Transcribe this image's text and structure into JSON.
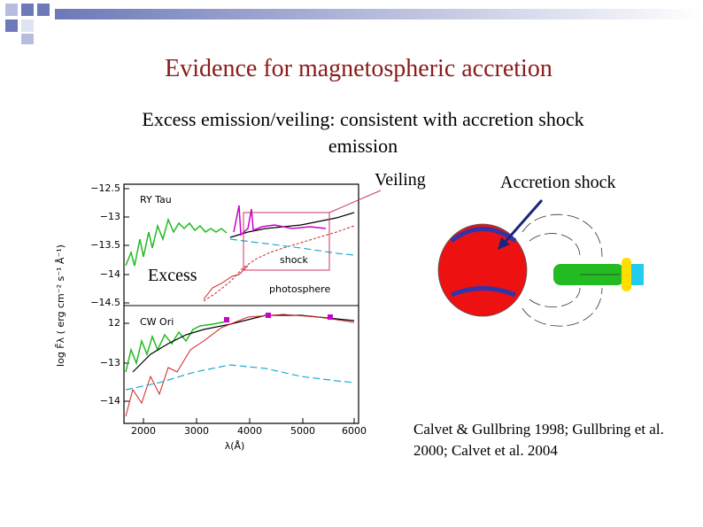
{
  "slide": {
    "title": "Evidence for magnetospheric accretion",
    "subtitle": "Excess emission/veiling: consistent with accretion shock emission"
  },
  "figure": {
    "annotations": {
      "veiling": "Veiling",
      "accretion_shock": "Accretion shock",
      "excess": "Excess"
    },
    "plot": {
      "panels": [
        {
          "label": "RY Tau",
          "yticks": [
            "−12.5",
            "−13",
            "−13.5",
            "−14",
            "−14.5"
          ]
        },
        {
          "label": "CW Ori",
          "yticks": [
            "12",
            "−13",
            "−14"
          ]
        }
      ],
      "xticks": [
        "2000",
        "3000",
        "4000",
        "5000",
        "6000"
      ],
      "xlabel": "λ(Å)",
      "ylabel": "log F̄λ ( erg cm⁻² s⁻¹ Å⁻¹)",
      "curve_labels": [
        "shock",
        "photosphere"
      ]
    }
  },
  "citation": "Calvet & Gullbring 1998; Gullbring et al. 2000; Calvet et al. 2004"
}
